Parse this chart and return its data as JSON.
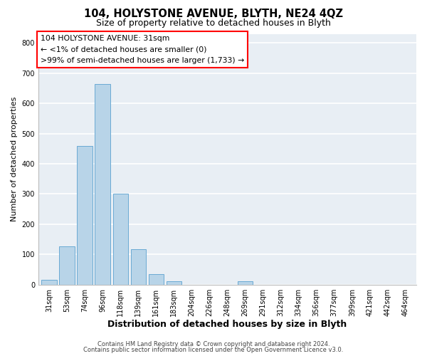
{
  "title": "104, HOLYSTONE AVENUE, BLYTH, NE24 4QZ",
  "subtitle": "Size of property relative to detached houses in Blyth",
  "xlabel": "Distribution of detached houses by size in Blyth",
  "ylabel": "Number of detached properties",
  "bar_color": "#b8d4e8",
  "bar_edge_color": "#6aaad4",
  "categories": [
    "31sqm",
    "53sqm",
    "74sqm",
    "96sqm",
    "118sqm",
    "139sqm",
    "161sqm",
    "183sqm",
    "204sqm",
    "226sqm",
    "248sqm",
    "269sqm",
    "291sqm",
    "312sqm",
    "334sqm",
    "356sqm",
    "377sqm",
    "399sqm",
    "421sqm",
    "442sqm",
    "464sqm"
  ],
  "values": [
    15,
    127,
    460,
    665,
    300,
    117,
    35,
    10,
    0,
    0,
    0,
    10,
    0,
    0,
    0,
    0,
    0,
    0,
    0,
    0,
    0
  ],
  "ylim": [
    0,
    830
  ],
  "yticks": [
    0,
    100,
    200,
    300,
    400,
    500,
    600,
    700,
    800
  ],
  "annotation_lines": [
    "104 HOLYSTONE AVENUE: 31sqm",
    "← <1% of detached houses are smaller (0)",
    ">99% of semi-detached houses are larger (1,733) →"
  ],
  "footer_line1": "Contains HM Land Registry data © Crown copyright and database right 2024.",
  "footer_line2": "Contains public sector information licensed under the Open Government Licence v3.0.",
  "background_color": "#e8eef4",
  "grid_color": "#ffffff",
  "title_fontsize": 10.5,
  "subtitle_fontsize": 9,
  "xlabel_fontsize": 9,
  "ylabel_fontsize": 8,
  "tick_fontsize": 7,
  "annotation_fontsize": 7.8,
  "footer_fontsize": 6.0
}
